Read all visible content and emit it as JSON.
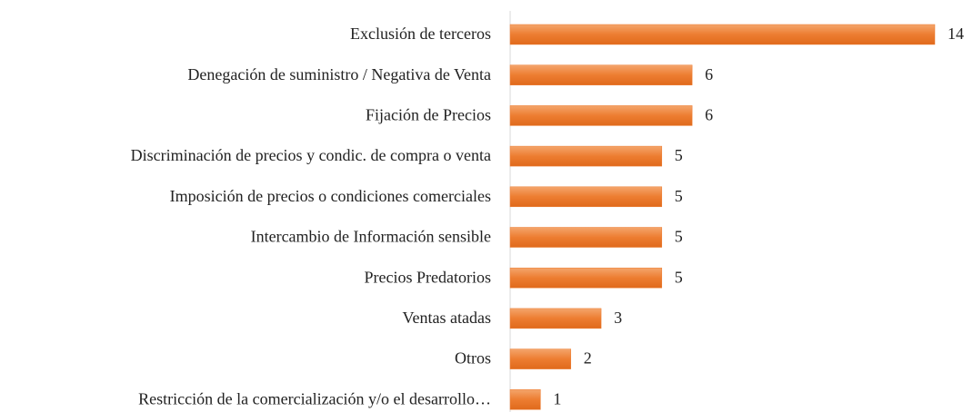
{
  "chart_data": {
    "type": "bar",
    "orientation": "horizontal",
    "categories": [
      "Exclusión de terceros",
      "Denegación de suministro / Negativa de Venta",
      "Fijación de Precios",
      "Discriminación de precios y condic. de compra o venta",
      "Imposición de precios o condiciones comerciales",
      "Intercambio de Información sensible",
      "Precios Predatorios",
      "Ventas atadas",
      "Otros",
      "Restricción de la comercialización y/o el desarrollo…"
    ],
    "values": [
      14,
      6,
      6,
      5,
      5,
      5,
      5,
      3,
      2,
      1
    ],
    "color": "#ed7d31"
  }
}
